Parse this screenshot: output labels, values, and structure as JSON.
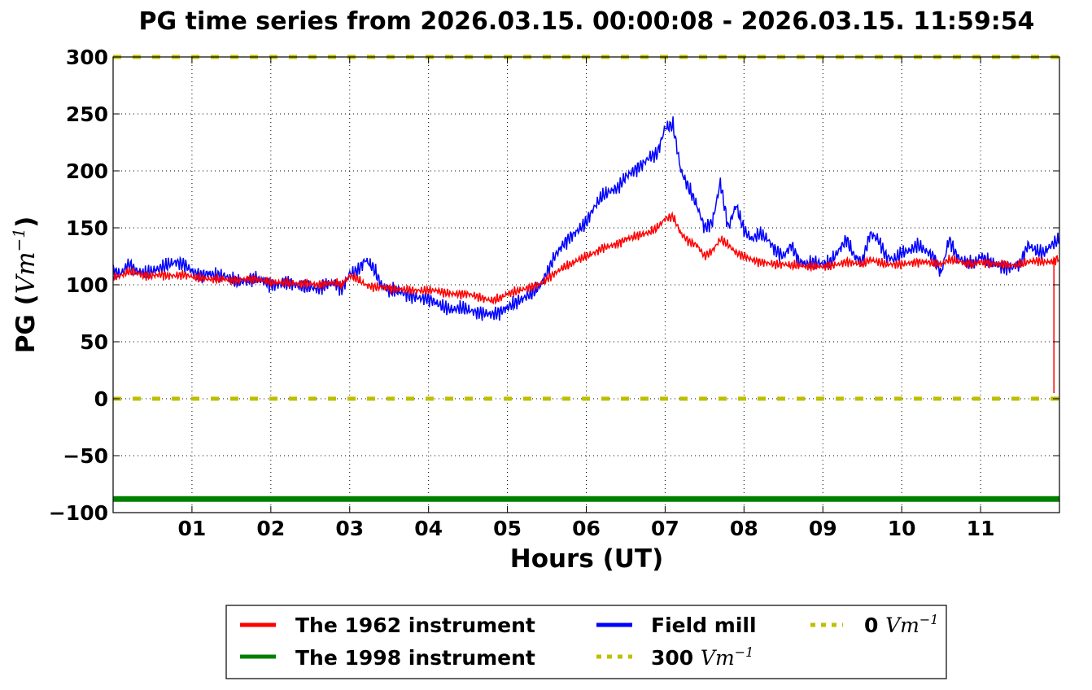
{
  "chart_data": {
    "type": "line",
    "title": "PG time series from 2026.03.15. 00:00:08 - 2026.03.15. 11:59:54",
    "xlabel": "Hours (UT)",
    "ylabel": "PG (",
    "ylabel_unit": "Vm",
    "ylabel_exp": "−1",
    "ylabel_close": ")",
    "xlim": [
      0,
      12
    ],
    "ylim": [
      -100,
      300
    ],
    "grid": true,
    "legend_placement": "below",
    "xticks": [
      1,
      2,
      3,
      4,
      5,
      6,
      7,
      8,
      9,
      10,
      11
    ],
    "xtick_labels": [
      "01",
      "02",
      "03",
      "04",
      "05",
      "06",
      "07",
      "08",
      "09",
      "10",
      "11"
    ],
    "yticks": [
      300,
      250,
      200,
      150,
      100,
      50,
      0,
      -50,
      -100
    ],
    "ytick_labels": [
      "300",
      "250",
      "200",
      "150",
      "100",
      "50",
      "0",
      "−50",
      "−100"
    ],
    "x": [
      0.0,
      0.1,
      0.2,
      0.3,
      0.4,
      0.5,
      0.6,
      0.7,
      0.8,
      0.9,
      1.0,
      1.1,
      1.2,
      1.3,
      1.4,
      1.5,
      1.6,
      1.7,
      1.8,
      1.9,
      2.0,
      2.1,
      2.2,
      2.3,
      2.4,
      2.5,
      2.6,
      2.7,
      2.8,
      2.9,
      3.0,
      3.1,
      3.2,
      3.3,
      3.4,
      3.5,
      3.6,
      3.7,
      3.8,
      3.9,
      4.0,
      4.1,
      4.2,
      4.3,
      4.4,
      4.5,
      4.6,
      4.7,
      4.8,
      4.9,
      5.0,
      5.1,
      5.2,
      5.3,
      5.4,
      5.5,
      5.6,
      5.7,
      5.8,
      5.9,
      6.0,
      6.1,
      6.2,
      6.3,
      6.4,
      6.5,
      6.6,
      6.7,
      6.8,
      6.9,
      7.0,
      7.1,
      7.2,
      7.3,
      7.4,
      7.5,
      7.6,
      7.7,
      7.8,
      7.9,
      8.0,
      8.1,
      8.2,
      8.3,
      8.4,
      8.5,
      8.6,
      8.7,
      8.8,
      8.9,
      9.0,
      9.1,
      9.2,
      9.3,
      9.4,
      9.5,
      9.6,
      9.7,
      9.8,
      9.9,
      10.0,
      10.1,
      10.2,
      10.3,
      10.4,
      10.5,
      10.6,
      10.7,
      10.8,
      10.9,
      11.0,
      11.1,
      11.2,
      11.3,
      11.4,
      11.5,
      11.6,
      11.7,
      11.8,
      11.9,
      12.0
    ],
    "series": [
      {
        "name": "The 1962 instrument",
        "color": "#ff0000",
        "values": [
          107,
          108,
          112,
          110,
          108,
          108,
          109,
          108,
          108,
          109,
          107,
          106,
          105,
          105,
          105,
          104,
          104,
          105,
          105,
          104,
          102,
          102,
          102,
          101,
          101,
          101,
          100,
          101,
          102,
          100,
          108,
          105,
          100,
          98,
          98,
          97,
          96,
          96,
          95,
          95,
          95,
          95,
          93,
          92,
          92,
          92,
          90,
          88,
          86,
          88,
          92,
          94,
          96,
          98,
          100,
          105,
          110,
          115,
          118,
          122,
          125,
          128,
          132,
          134,
          136,
          140,
          142,
          144,
          146,
          150,
          158,
          160,
          145,
          138,
          135,
          125,
          130,
          140,
          135,
          128,
          125,
          122,
          120,
          119,
          118,
          118,
          117,
          117,
          116,
          116,
          116,
          117,
          118,
          120,
          119,
          118,
          122,
          120,
          118,
          118,
          118,
          119,
          120,
          120,
          119,
          118,
          122,
          121,
          119,
          118,
          120,
          119,
          118,
          118,
          117,
          118,
          120,
          121,
          120,
          120,
          124
        ],
        "spike": {
          "x": 11.93,
          "value": 5
        }
      },
      {
        "name": "The 1998 instrument",
        "color": "#008000",
        "constant": -88
      },
      {
        "name": "Field mill",
        "color": "#0000ff",
        "values": [
          112,
          110,
          118,
          112,
          110,
          112,
          115,
          118,
          120,
          118,
          112,
          108,
          110,
          108,
          108,
          105,
          102,
          104,
          106,
          104,
          100,
          100,
          102,
          100,
          98,
          98,
          96,
          100,
          102,
          96,
          110,
          112,
          122,
          115,
          100,
          95,
          95,
          92,
          90,
          88,
          88,
          84,
          80,
          78,
          80,
          78,
          76,
          75,
          74,
          76,
          80,
          84,
          88,
          92,
          98,
          110,
          125,
          135,
          142,
          148,
          155,
          168,
          178,
          182,
          185,
          195,
          200,
          205,
          212,
          215,
          238,
          240,
          200,
          185,
          170,
          150,
          155,
          190,
          150,
          170,
          148,
          140,
          145,
          140,
          130,
          125,
          135,
          120,
          118,
          120,
          118,
          120,
          130,
          140,
          125,
          120,
          145,
          140,
          125,
          122,
          128,
          130,
          135,
          130,
          125,
          110,
          140,
          125,
          120,
          118,
          125,
          120,
          118,
          115,
          115,
          118,
          135,
          130,
          128,
          135,
          140
        ]
      },
      {
        "name": "300",
        "unit": "Vm",
        "exp": "−1",
        "color": "#bfbf00",
        "constant": 300,
        "style": "dotted"
      },
      {
        "name": "0",
        "unit": "Vm",
        "exp": "−1",
        "color": "#bfbf00",
        "constant": 0,
        "style": "dotted"
      }
    ]
  }
}
